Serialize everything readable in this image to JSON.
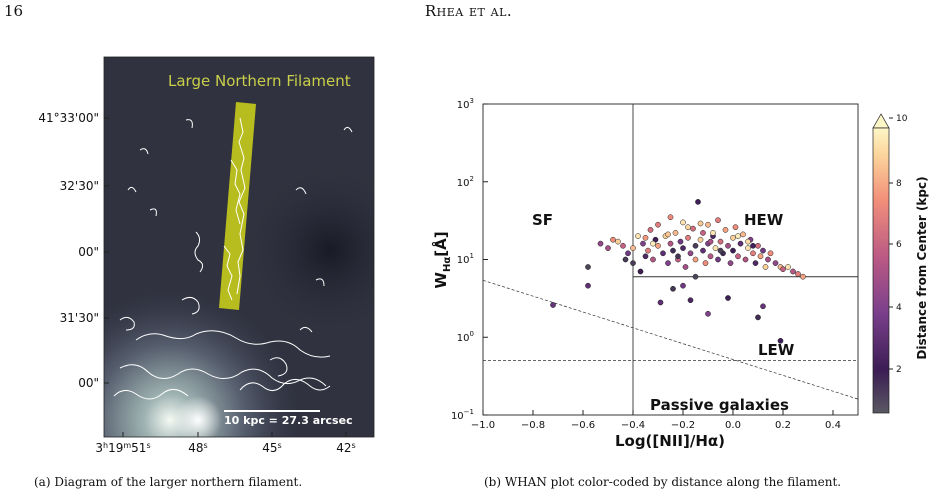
{
  "header": {
    "page_number": "16",
    "running_head": "Rhea et al."
  },
  "panel_a": {
    "title": "Large Northern Filament",
    "dec_ticks": [
      "41°33'00\"",
      "32'30\"",
      "00\"",
      "31'30\"",
      "00\""
    ],
    "ra_ticks": [
      "3h19m51s",
      "48s",
      "45s",
      "42s"
    ],
    "ra_ticks_parts": [
      [
        "3",
        "h",
        "19",
        "m",
        "51",
        "s"
      ],
      [
        "48",
        "s"
      ],
      [
        "45",
        "s"
      ],
      [
        "42",
        "s"
      ]
    ],
    "scalebar_label": "10 kpc = 27.3 arcsec",
    "caption": "(a) Diagram of the larger northern filament.",
    "colors": {
      "filament_box": "#c8cc1c",
      "title": "#c9cf4a",
      "contours": "#ffffff"
    }
  },
  "panel_b": {
    "caption": "(b) WHAN plot color-coded by distance along the filament.",
    "region_labels": {
      "sf": "SF",
      "hew": "HEW",
      "lew": "LEW",
      "passive": "Passive galaxies"
    },
    "colorbar": {
      "label": "Distance from Center (kpc)",
      "ticks": [
        "2",
        "4",
        "6",
        "8",
        "10"
      ],
      "range": [
        0.5,
        10
      ]
    }
  },
  "chart_data": {
    "type": "scatter",
    "title": "",
    "xlabel": "Log([NII]/Hα)",
    "ylabel": "W_Hα[Å]",
    "ylabel_main": "W",
    "ylabel_sub": "Hα",
    "ylabel_unit": "[Å]",
    "xlim": [
      -1.0,
      0.5
    ],
    "ylim": [
      0.1,
      1000
    ],
    "yscale": "log",
    "x_ticks": [
      "−1.0",
      "−0.8",
      "−0.6",
      "−0.4",
      "−0.2",
      "0.0",
      "0.2",
      "0.4"
    ],
    "y_ticks": [
      "10",
      "10",
      "10",
      "10",
      "10"
    ],
    "y_ticks_exp": [
      "−1",
      "0",
      "1",
      "2",
      "3"
    ],
    "grid": false,
    "colormap": "magma",
    "lines": [
      {
        "name": "",
        "style": "solid",
        "x": [
          -0.4,
          -0.4
        ],
        "y": [
          0.1,
          1000
        ]
      },
      {
        "name": "",
        "style": "solid",
        "x": [
          -0.4,
          0.5
        ],
        "y": [
          6,
          6
        ]
      },
      {
        "name": "",
        "style": "dashed",
        "x": [
          -1.0,
          0.5
        ],
        "y": [
          0.5,
          0.5
        ]
      },
      {
        "name": "",
        "style": "dashed",
        "x": [
          -1.0,
          0.5
        ],
        "y": [
          5.4,
          0.16
        ]
      }
    ],
    "points": [
      {
        "x": -0.72,
        "y": 2.6,
        "d": 3.2
      },
      {
        "x": -0.58,
        "y": 8.0,
        "d": 0.8
      },
      {
        "x": -0.58,
        "y": 4.6,
        "d": 3.0
      },
      {
        "x": -0.53,
        "y": 16,
        "d": 4.5
      },
      {
        "x": -0.5,
        "y": 14,
        "d": 5.0
      },
      {
        "x": -0.48,
        "y": 18,
        "d": 7.5
      },
      {
        "x": -0.46,
        "y": 17,
        "d": 9.0
      },
      {
        "x": -0.44,
        "y": 15,
        "d": 6.0
      },
      {
        "x": -0.42,
        "y": 12,
        "d": 3.5
      },
      {
        "x": -0.4,
        "y": 14,
        "d": 8.5
      },
      {
        "x": -0.4,
        "y": 9,
        "d": 1.0
      },
      {
        "x": -0.38,
        "y": 20,
        "d": 9.5
      },
      {
        "x": -0.36,
        "y": 16,
        "d": 4.0
      },
      {
        "x": -0.35,
        "y": 11,
        "d": 2.5
      },
      {
        "x": -0.34,
        "y": 13,
        "d": 7.0
      },
      {
        "x": -0.33,
        "y": 24,
        "d": 6.5
      },
      {
        "x": -0.32,
        "y": 10,
        "d": 5.5
      },
      {
        "x": -0.31,
        "y": 18,
        "d": 2.0
      },
      {
        "x": -0.3,
        "y": 15,
        "d": 8.0
      },
      {
        "x": -0.3,
        "y": 28,
        "d": 7.0
      },
      {
        "x": -0.28,
        "y": 12,
        "d": 3.0
      },
      {
        "x": -0.27,
        "y": 20,
        "d": 9.0
      },
      {
        "x": -0.26,
        "y": 9,
        "d": 4.0
      },
      {
        "x": -0.25,
        "y": 16,
        "d": 5.5
      },
      {
        "x": -0.25,
        "y": 35,
        "d": 7.5
      },
      {
        "x": -0.24,
        "y": 13,
        "d": 1.5
      },
      {
        "x": -0.23,
        "y": 22,
        "d": 8.5
      },
      {
        "x": -0.22,
        "y": 10,
        "d": 6.0
      },
      {
        "x": -0.21,
        "y": 17,
        "d": 3.5
      },
      {
        "x": -0.2,
        "y": 30,
        "d": 9.5
      },
      {
        "x": -0.2,
        "y": 14,
        "d": 2.5
      },
      {
        "x": -0.19,
        "y": 8,
        "d": 5.0
      },
      {
        "x": -0.18,
        "y": 19,
        "d": 7.0
      },
      {
        "x": -0.17,
        "y": 12,
        "d": 4.5
      },
      {
        "x": -0.16,
        "y": 25,
        "d": 6.5
      },
      {
        "x": -0.15,
        "y": 15,
        "d": 1.0
      },
      {
        "x": -0.15,
        "y": 10,
        "d": 8.0
      },
      {
        "x": -0.14,
        "y": 55,
        "d": 2.0
      },
      {
        "x": -0.13,
        "y": 18,
        "d": 9.0
      },
      {
        "x": -0.12,
        "y": 13,
        "d": 3.0
      },
      {
        "x": -0.12,
        "y": 22,
        "d": 6.0
      },
      {
        "x": -0.11,
        "y": 9,
        "d": 7.5
      },
      {
        "x": -0.1,
        "y": 16,
        "d": 4.0
      },
      {
        "x": -0.1,
        "y": 28,
        "d": 8.5
      },
      {
        "x": -0.09,
        "y": 11,
        "d": 5.5
      },
      {
        "x": -0.08,
        "y": 20,
        "d": 2.5
      },
      {
        "x": -0.07,
        "y": 14,
        "d": 9.5
      },
      {
        "x": -0.06,
        "y": 32,
        "d": 7.0
      },
      {
        "x": -0.06,
        "y": 10,
        "d": 3.5
      },
      {
        "x": -0.05,
        "y": 17,
        "d": 6.5
      },
      {
        "x": -0.04,
        "y": 12,
        "d": 1.5
      },
      {
        "x": -0.03,
        "y": 24,
        "d": 8.0
      },
      {
        "x": -0.02,
        "y": 15,
        "d": 5.0
      },
      {
        "x": -0.01,
        "y": 9,
        "d": 4.5
      },
      {
        "x": 0.0,
        "y": 19,
        "d": 9.0
      },
      {
        "x": 0.0,
        "y": 13,
        "d": 2.0
      },
      {
        "x": 0.01,
        "y": 26,
        "d": 7.5
      },
      {
        "x": 0.02,
        "y": 11,
        "d": 6.0
      },
      {
        "x": 0.03,
        "y": 16,
        "d": 3.0
      },
      {
        "x": 0.04,
        "y": 21,
        "d": 8.5
      },
      {
        "x": 0.05,
        "y": 10,
        "d": 5.5
      },
      {
        "x": 0.06,
        "y": 14,
        "d": 9.5
      },
      {
        "x": 0.07,
        "y": 18,
        "d": 4.0
      },
      {
        "x": 0.08,
        "y": 12,
        "d": 7.0
      },
      {
        "x": 0.09,
        "y": 9,
        "d": 2.5
      },
      {
        "x": 0.1,
        "y": 15,
        "d": 6.5
      },
      {
        "x": 0.11,
        "y": 11,
        "d": 8.0
      },
      {
        "x": 0.12,
        "y": 13,
        "d": 3.5
      },
      {
        "x": 0.13,
        "y": 8,
        "d": 9.0
      },
      {
        "x": 0.14,
        "y": 10,
        "d": 5.0
      },
      {
        "x": 0.15,
        "y": 12,
        "d": 7.5
      },
      {
        "x": 0.17,
        "y": 9,
        "d": 4.5
      },
      {
        "x": 0.19,
        "y": 8,
        "d": 8.5
      },
      {
        "x": 0.2,
        "y": 7.5,
        "d": 6.0
      },
      {
        "x": 0.22,
        "y": 8,
        "d": 9.5
      },
      {
        "x": 0.24,
        "y": 7,
        "d": 5.5
      },
      {
        "x": 0.26,
        "y": 6.5,
        "d": 7.0
      },
      {
        "x": 0.28,
        "y": 6,
        "d": 8.0
      },
      {
        "x": -0.43,
        "y": 10,
        "d": 1.0
      },
      {
        "x": -0.37,
        "y": 7,
        "d": 2.0
      },
      {
        "x": -0.29,
        "y": 2.8,
        "d": 3.0
      },
      {
        "x": -0.24,
        "y": 4.2,
        "d": 1.2
      },
      {
        "x": -0.2,
        "y": 4.6,
        "d": 3.5
      },
      {
        "x": -0.17,
        "y": 3.0,
        "d": 2.4
      },
      {
        "x": -0.1,
        "y": 2.0,
        "d": 4.0
      },
      {
        "x": -0.02,
        "y": 3.2,
        "d": 1.8
      },
      {
        "x": 0.12,
        "y": 2.5,
        "d": 3.2
      },
      {
        "x": 0.1,
        "y": 1.8,
        "d": 1.5
      },
      {
        "x": 0.19,
        "y": 0.9,
        "d": 2.0
      },
      {
        "x": -0.15,
        "y": 6,
        "d": 0.8
      },
      {
        "x": -0.32,
        "y": 16,
        "d": 9.8
      },
      {
        "x": -0.18,
        "y": 26,
        "d": 9.2
      },
      {
        "x": -0.08,
        "y": 22,
        "d": 9.6
      },
      {
        "x": 0.02,
        "y": 20,
        "d": 9.7
      },
      {
        "x": -0.26,
        "y": 21,
        "d": 8.8
      },
      {
        "x": -0.13,
        "y": 29,
        "d": 8.9
      },
      {
        "x": 0.06,
        "y": 17,
        "d": 9.3
      },
      {
        "x": -0.05,
        "y": 13,
        "d": 0.9
      },
      {
        "x": -0.22,
        "y": 11,
        "d": 1.3
      },
      {
        "x": 0.08,
        "y": 15,
        "d": 2.2
      },
      {
        "x": -0.35,
        "y": 19,
        "d": 7.8
      },
      {
        "x": -0.09,
        "y": 17,
        "d": 5.2
      }
    ]
  }
}
